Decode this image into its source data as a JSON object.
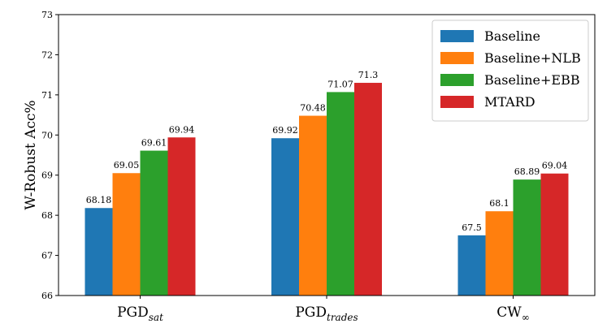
{
  "chart_data": {
    "type": "bar",
    "categories": [
      {
        "base": "PGD",
        "sub": "sat",
        "sub_style": "italic"
      },
      {
        "base": "PGD",
        "sub": "trades",
        "sub_style": "italic"
      },
      {
        "base": "CW",
        "sub": "∞",
        "sub_style": "normal"
      }
    ],
    "series": [
      {
        "name": "Baseline",
        "color": "#1f77b4",
        "values": [
          68.18,
          69.92,
          67.5
        ],
        "labels": [
          "68.18",
          "69.92",
          "67.5"
        ]
      },
      {
        "name": "Baseline+NLB",
        "color": "#ff7f0e",
        "values": [
          69.05,
          70.48,
          68.1
        ],
        "labels": [
          "69.05",
          "70.48",
          "68.1"
        ]
      },
      {
        "name": "Baseline+EBB",
        "color": "#2ca02c",
        "values": [
          69.61,
          71.07,
          68.89
        ],
        "labels": [
          "69.61",
          "71.07",
          "68.89"
        ]
      },
      {
        "name": "MTARD",
        "color": "#d62728",
        "values": [
          69.94,
          71.3,
          69.04
        ],
        "labels": [
          "69.94",
          "71.3",
          "69.04"
        ]
      }
    ],
    "ylabel": "W-Robust Acc%",
    "xlabel": "",
    "ylim": [
      66,
      73
    ],
    "yticks": [
      "66",
      "67",
      "68",
      "69",
      "70",
      "71",
      "72",
      "73"
    ],
    "legend_position": "top-right",
    "grid": false
  }
}
